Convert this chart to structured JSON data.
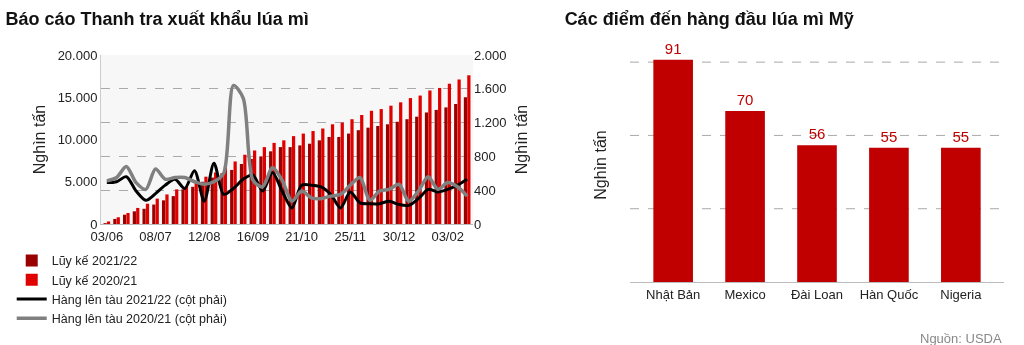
{
  "chart_data": [
    {
      "type": "bar",
      "title": "Báo cáo Thanh tra xuất khẩu lúa mì",
      "ylabel": "Nghìn tấn",
      "y2label": "Nghìn tấn",
      "categories": [
        "03/06",
        null,
        null,
        null,
        null,
        "08/07",
        null,
        null,
        null,
        null,
        "12/08",
        null,
        null,
        null,
        null,
        "16/09",
        null,
        null,
        null,
        null,
        "21/10",
        null,
        null,
        null,
        null,
        "25/11",
        null,
        null,
        null,
        null,
        "30/12",
        null,
        null,
        null,
        null,
        "03/02",
        null,
        null
      ],
      "series": [
        {
          "name": "Lũy kế 2021/22",
          "color": "#990000",
          "values": [
            100,
            600,
            1100,
            1500,
            1800,
            2300,
            2800,
            3300,
            4100,
            4400,
            5000,
            5500,
            6000,
            6400,
            7100,
            7700,
            8000,
            8600,
            9100,
            9100,
            9300,
            9500,
            9900,
            10300,
            10300,
            10700,
            11100,
            11400,
            11600,
            11800,
            12100,
            12400,
            12700,
            13200,
            13500,
            13800,
            14200,
            15000
          ]
        },
        {
          "name": "Lũy kế 2020/21",
          "color": "#e00000",
          "values": [
            300,
            800,
            1300,
            1900,
            2400,
            3000,
            3500,
            4100,
            4400,
            4900,
            5600,
            6100,
            6800,
            7400,
            8200,
            8700,
            9100,
            9600,
            9900,
            10400,
            10700,
            11000,
            11300,
            11800,
            12000,
            12400,
            12900,
            13400,
            13600,
            14000,
            14400,
            14900,
            15200,
            15800,
            16100,
            16600,
            17100,
            17600
          ]
        },
        {
          "name": "Hàng lên tàu 2021/22 (cột phải)",
          "type": "line",
          "axis": "y2",
          "color": "#000000",
          "values": [
            490,
            500,
            560,
            390,
            280,
            360,
            460,
            530,
            420,
            630,
            270,
            720,
            350,
            420,
            530,
            580,
            390,
            610,
            390,
            190,
            460,
            460,
            440,
            350,
            190,
            380,
            250,
            240,
            240,
            270,
            230,
            220,
            300,
            410,
            380,
            410,
            460,
            530
          ]
        },
        {
          "name": "Hàng lên tàu 2020/21 (cột phải)",
          "type": "line",
          "axis": "y2",
          "color": "#808080",
          "values": [
            510,
            550,
            680,
            490,
            410,
            650,
            530,
            550,
            550,
            500,
            470,
            500,
            600,
            1640,
            1490,
            520,
            440,
            670,
            520,
            270,
            390,
            310,
            300,
            330,
            350,
            460,
            550,
            280,
            390,
            410,
            470,
            270,
            390,
            560,
            410,
            490,
            440,
            330
          ]
        }
      ],
      "ylim": [
        0,
        20000
      ],
      "yticks": [
        {
          "value": 0,
          "label": "0"
        },
        {
          "value": 5000,
          "label": "5.000"
        },
        {
          "value": 10000,
          "label": "10.000"
        },
        {
          "value": 15000,
          "label": "15.000"
        },
        {
          "value": 20000,
          "label": "20.000"
        }
      ],
      "y2lim": [
        0,
        2000
      ],
      "y2ticks": [
        {
          "value": 0,
          "label": "0"
        },
        {
          "value": 400,
          "label": "400"
        },
        {
          "value": 800,
          "label": "800"
        },
        {
          "value": 1200,
          "label": "1.200"
        },
        {
          "value": 1600,
          "label": "1.600"
        },
        {
          "value": 2000,
          "label": "2.000"
        }
      ],
      "grid": "y2",
      "legend": "bottom"
    },
    {
      "type": "bar",
      "title": "Các điểm đến hàng đầu lúa mì Mỹ",
      "ylabel": "Nghìn tấn",
      "categories": [
        "Nhật Bản",
        "Mexico",
        "Đài Loan",
        "Hàn Quốc",
        "Nigeria"
      ],
      "values": [
        91,
        70,
        56,
        55,
        55
      ],
      "color": "#c00000",
      "data_labels": true,
      "ref_lines": [
        {
          "axis": "y",
          "value": 30,
          "color": "#aaaaaa",
          "line_style": "dashed"
        },
        {
          "axis": "y",
          "value": 60,
          "color": "#aaaaaa",
          "line_style": "dashed"
        },
        {
          "axis": "y",
          "value": 90,
          "color": "#aaaaaa",
          "line_style": "dashed"
        }
      ],
      "tick_labels": "x",
      "legend": false,
      "annotations": [
        "Nguồn: USDA"
      ]
    }
  ]
}
